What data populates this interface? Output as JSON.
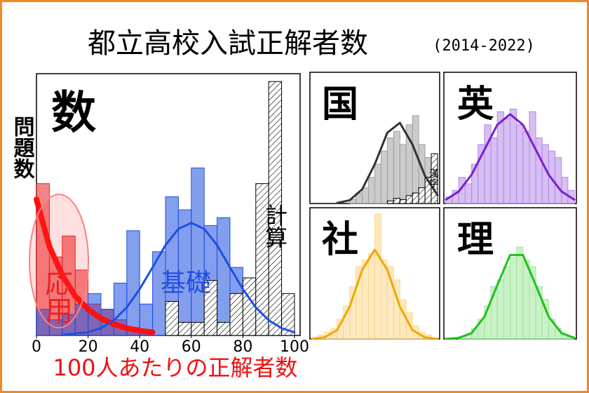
{
  "title": "都立高校入試正解者数",
  "subtitle": "(2014-2022)",
  "chart_data": [
    {
      "type": "histogram",
      "label": "数",
      "ylabel": "問題数",
      "xlabel": "100人あたりの正解者数",
      "bins": [
        0,
        5,
        10,
        15,
        20,
        25,
        30,
        35,
        40,
        45,
        50,
        55,
        60,
        65,
        70,
        75,
        80,
        85,
        90,
        95,
        100
      ],
      "xlim": [
        0,
        100
      ],
      "ylim": [
        0,
        100
      ],
      "xticks": [
        0,
        20,
        40,
        60,
        80,
        100
      ],
      "series": [
        {
          "name": "応用",
          "color": "#e82020",
          "values": [
            58,
            30,
            38,
            25,
            12,
            10,
            6,
            3,
            1,
            0,
            0,
            0,
            0,
            0,
            0,
            0,
            0,
            0,
            0,
            0
          ]
        },
        {
          "name": "基礎",
          "color": "#1f4fe0",
          "values": [
            10,
            6,
            8,
            12,
            16,
            10,
            20,
            40,
            12,
            32,
            53,
            48,
            64,
            42,
            45,
            26,
            21,
            15,
            0,
            0
          ]
        },
        {
          "name": "計算",
          "color": "#000000",
          "hatch": true,
          "values": [
            0,
            0,
            0,
            0,
            0,
            0,
            0,
            0,
            0,
            0,
            13,
            5,
            5,
            21,
            5,
            16,
            22,
            58,
            97,
            16
          ]
        }
      ],
      "curves": [
        {
          "color": "#ff1010",
          "x": [
            0,
            5,
            10,
            15,
            20,
            25,
            30,
            35,
            40,
            45
          ],
          "values": [
            52,
            34,
            23,
            15,
            10,
            6.5,
            4.3,
            2.8,
            1.8,
            1.2
          ]
        },
        {
          "color": "#1f4fe0",
          "x": [
            10,
            20,
            25,
            30,
            35,
            40,
            45,
            50,
            55,
            60,
            65,
            70,
            75,
            80,
            85,
            90,
            95,
            100
          ],
          "values": [
            0.2,
            1.2,
            2.8,
            5.8,
            10.7,
            17.7,
            26,
            34.5,
            40.7,
            43,
            40.7,
            34.5,
            26,
            17.7,
            10.7,
            5.8,
            2.8,
            1.2
          ]
        }
      ]
    },
    {
      "type": "histogram",
      "label": "国",
      "bins": [
        0,
        5,
        10,
        15,
        20,
        25,
        30,
        35,
        40,
        45,
        50,
        55,
        60,
        65,
        70,
        75,
        80,
        85,
        90,
        95,
        100
      ],
      "ylim": [
        0,
        100
      ],
      "series": [
        {
          "color": "#a0a0a0",
          "values": [
            0,
            0,
            0,
            0,
            0,
            0,
            3,
            8,
            12,
            20,
            30,
            40,
            50,
            55,
            45,
            60,
            67,
            45,
            35,
            10
          ]
        },
        {
          "name": "漢字",
          "color": "#000000",
          "hatch": true,
          "values": [
            0,
            0,
            0,
            0,
            0,
            0,
            0,
            0,
            0,
            0,
            0,
            0,
            2,
            4,
            3,
            6,
            8,
            12,
            20,
            38
          ]
        }
      ],
      "curves": [
        {
          "color": "#333333",
          "x": [
            20,
            30,
            40,
            50,
            60,
            70,
            80,
            90,
            100
          ],
          "values": [
            0.4,
            2.5,
            10.9,
            30,
            54,
            61.5,
            45,
            21,
            6.4
          ]
        }
      ]
    },
    {
      "type": "histogram",
      "label": "英",
      "bins": [
        0,
        5,
        10,
        15,
        20,
        25,
        30,
        35,
        40,
        45,
        50,
        55,
        60,
        65,
        70,
        75,
        80,
        85,
        90,
        95,
        100
      ],
      "ylim": [
        0,
        100
      ],
      "series": [
        {
          "color": "#b58ae8",
          "values": [
            5,
            10,
            20,
            15,
            30,
            45,
            60,
            50,
            70,
            65,
            72,
            60,
            55,
            70,
            50,
            45,
            40,
            35,
            20,
            10
          ]
        }
      ],
      "curves": [
        {
          "color": "#7a1fd0",
          "x": [
            0,
            10,
            20,
            30,
            40,
            50,
            60,
            70,
            80,
            90,
            100
          ],
          "values": [
            3,
            9.2,
            22,
            41,
            60,
            68,
            60,
            41,
            22,
            9.2,
            3
          ]
        }
      ]
    },
    {
      "type": "histogram",
      "label": "社",
      "bins": [
        0,
        5,
        10,
        15,
        20,
        25,
        30,
        35,
        40,
        45,
        50,
        55,
        60,
        65,
        70,
        75,
        80,
        85,
        90,
        95,
        100
      ],
      "ylim": [
        0,
        100
      ],
      "series": [
        {
          "color": "#fbd78a",
          "values": [
            0,
            3,
            5,
            8,
            15,
            25,
            40,
            55,
            60,
            65,
            95,
            60,
            55,
            45,
            30,
            20,
            10,
            5,
            3,
            0
          ]
        }
      ],
      "curves": [
        {
          "color": "#f0a800",
          "x": [
            0,
            10,
            20,
            30,
            40,
            50,
            60,
            70,
            80,
            90,
            100
          ],
          "values": [
            0.1,
            1.2,
            6.8,
            24.6,
            52.7,
            68,
            52.7,
            24.6,
            6.8,
            1.2,
            0.1
          ]
        }
      ]
    },
    {
      "type": "histogram",
      "label": "理",
      "bins": [
        0,
        5,
        10,
        15,
        20,
        25,
        30,
        35,
        40,
        45,
        50,
        55,
        60,
        65,
        70,
        75,
        80,
        85,
        90,
        95,
        100
      ],
      "ylim": [
        0,
        100
      ],
      "series": [
        {
          "color": "#9ee79a",
          "values": [
            0,
            0,
            2,
            3,
            8,
            15,
            25,
            40,
            45,
            55,
            62,
            70,
            60,
            55,
            40,
            30,
            15,
            8,
            3,
            2
          ]
        }
      ],
      "curves": [
        {
          "color": "#20c020",
          "x": [
            0,
            10,
            20,
            30,
            40,
            50,
            60,
            70,
            80,
            90,
            100
          ],
          "values": [
            0.1,
            0.8,
            4.5,
            17,
            41,
            64,
            64,
            41,
            17,
            4.5,
            0.8
          ]
        }
      ]
    }
  ]
}
